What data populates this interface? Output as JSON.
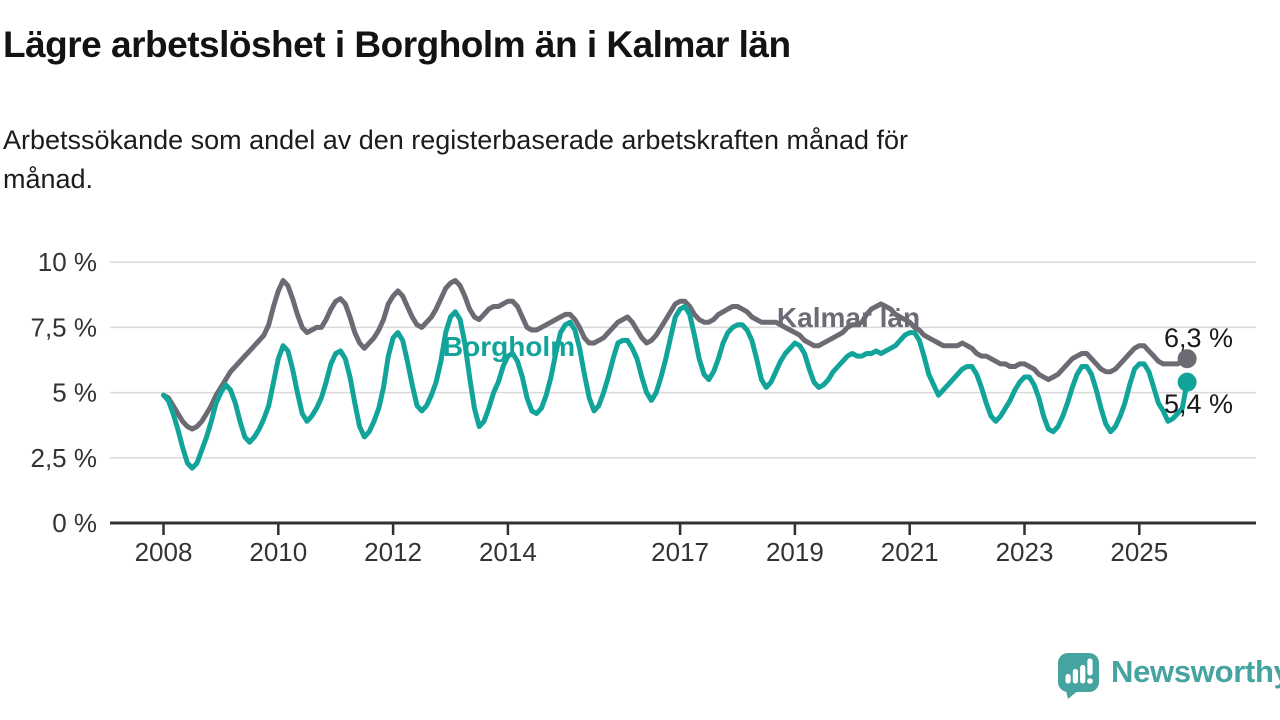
{
  "header": {
    "title": "Lägre arbetslöshet i Borgholm än i Kalmar län",
    "subtitle_line1": "Arbetssökande som andel av den registerbaserade arbetskraften månad för",
    "subtitle_line2": "månad."
  },
  "chart_data": {
    "type": "line",
    "title": "Lägre arbetslöshet i Borgholm än i Kalmar län",
    "subtitle": "Arbetssökande som andel av den registerbaserade arbetskraften månad för månad.",
    "x_unit": "month",
    "x_start": "2008-01",
    "x_end": "2025-11",
    "ylim": [
      0,
      10
    ],
    "grid": true,
    "ytick_labels": [
      "0 %",
      "2,5 %",
      "5 %",
      "7,5 %",
      "10 %"
    ],
    "ytick_values": [
      0,
      2.5,
      5,
      7.5,
      10
    ],
    "xtick_labels": [
      "2008",
      "2010",
      "2012",
      "2014",
      "2017",
      "2019",
      "2021",
      "2023",
      "2025"
    ],
    "xtick_years": [
      2008,
      2010,
      2012,
      2014,
      2017,
      2019,
      2021,
      2023,
      2025
    ],
    "series": [
      {
        "name": "Kalmar län",
        "slug": "kalmar-lan",
        "color": "#6e6a73",
        "end_label": "6,3 %",
        "end_value": 6.3,
        "values": [
          4.9,
          4.8,
          4.5,
          4.2,
          3.9,
          3.7,
          3.6,
          3.7,
          3.9,
          4.2,
          4.5,
          4.9,
          5.2,
          5.5,
          5.8,
          6.0,
          6.2,
          6.4,
          6.6,
          6.8,
          7.0,
          7.2,
          7.6,
          8.3,
          8.9,
          9.3,
          9.1,
          8.6,
          8.0,
          7.5,
          7.3,
          7.4,
          7.5,
          7.5,
          7.8,
          8.2,
          8.5,
          8.6,
          8.4,
          7.9,
          7.3,
          6.9,
          6.7,
          6.9,
          7.1,
          7.4,
          7.8,
          8.4,
          8.7,
          8.9,
          8.7,
          8.3,
          7.9,
          7.6,
          7.5,
          7.7,
          7.9,
          8.2,
          8.6,
          9.0,
          9.2,
          9.3,
          9.1,
          8.7,
          8.2,
          7.9,
          7.8,
          8.0,
          8.2,
          8.3,
          8.3,
          8.4,
          8.5,
          8.5,
          8.3,
          7.9,
          7.5,
          7.4,
          7.4,
          7.5,
          7.6,
          7.7,
          7.8,
          7.9,
          8.0,
          8.0,
          7.8,
          7.5,
          7.1,
          6.9,
          6.9,
          7.0,
          7.1,
          7.3,
          7.5,
          7.7,
          7.8,
          7.9,
          7.7,
          7.4,
          7.1,
          6.9,
          7.0,
          7.2,
          7.5,
          7.8,
          8.1,
          8.4,
          8.5,
          8.5,
          8.3,
          8.0,
          7.8,
          7.7,
          7.7,
          7.8,
          8.0,
          8.1,
          8.2,
          8.3,
          8.3,
          8.2,
          8.1,
          7.9,
          7.8,
          7.7,
          7.7,
          7.7,
          7.7,
          7.6,
          7.5,
          7.4,
          7.3,
          7.2,
          7.0,
          6.9,
          6.8,
          6.8,
          6.9,
          7.0,
          7.1,
          7.2,
          7.3,
          7.5,
          7.6,
          7.6,
          7.7,
          8.0,
          8.2,
          8.3,
          8.4,
          8.3,
          8.2,
          8.0,
          7.9,
          7.8,
          7.7,
          7.5,
          7.4,
          7.2,
          7.1,
          7.0,
          6.9,
          6.8,
          6.8,
          6.8,
          6.8,
          6.9,
          6.8,
          6.7,
          6.5,
          6.4,
          6.4,
          6.3,
          6.2,
          6.1,
          6.1,
          6.0,
          6.0,
          6.1,
          6.1,
          6.0,
          5.9,
          5.7,
          5.6,
          5.5,
          5.6,
          5.7,
          5.9,
          6.1,
          6.3,
          6.4,
          6.5,
          6.5,
          6.3,
          6.1,
          5.9,
          5.8,
          5.8,
          5.9,
          6.1,
          6.3,
          6.5,
          6.7,
          6.8,
          6.8,
          6.6,
          6.4,
          6.2,
          6.1,
          6.1,
          6.1,
          6.1,
          6.2,
          6.3
        ]
      },
      {
        "name": "Borgholm",
        "slug": "borgholm",
        "color": "#12a49a",
        "end_label": "5,4 %",
        "end_value": 5.4,
        "values": [
          4.9,
          4.7,
          4.2,
          3.6,
          2.9,
          2.3,
          2.1,
          2.3,
          2.8,
          3.3,
          3.9,
          4.6,
          5.0,
          5.3,
          5.1,
          4.6,
          3.9,
          3.3,
          3.1,
          3.3,
          3.6,
          4.0,
          4.5,
          5.4,
          6.3,
          6.8,
          6.6,
          5.9,
          5.0,
          4.2,
          3.9,
          4.1,
          4.4,
          4.8,
          5.4,
          6.1,
          6.5,
          6.6,
          6.3,
          5.6,
          4.6,
          3.7,
          3.3,
          3.5,
          3.9,
          4.4,
          5.2,
          6.4,
          7.1,
          7.3,
          7.0,
          6.2,
          5.3,
          4.5,
          4.3,
          4.5,
          4.9,
          5.4,
          6.2,
          7.3,
          7.9,
          8.1,
          7.8,
          6.9,
          5.6,
          4.4,
          3.7,
          3.9,
          4.4,
          5.0,
          5.4,
          6.0,
          6.4,
          6.5,
          6.2,
          5.6,
          4.8,
          4.3,
          4.2,
          4.4,
          4.9,
          5.6,
          6.5,
          7.3,
          7.6,
          7.7,
          7.4,
          6.7,
          5.7,
          4.8,
          4.3,
          4.5,
          5.0,
          5.6,
          6.3,
          6.9,
          7.0,
          7.0,
          6.7,
          6.3,
          5.6,
          5.0,
          4.7,
          5.0,
          5.6,
          6.3,
          7.1,
          7.9,
          8.2,
          8.3,
          8.0,
          7.2,
          6.3,
          5.7,
          5.5,
          5.8,
          6.3,
          6.9,
          7.3,
          7.5,
          7.6,
          7.6,
          7.4,
          7.0,
          6.3,
          5.5,
          5.2,
          5.4,
          5.8,
          6.2,
          6.5,
          6.7,
          6.9,
          6.8,
          6.5,
          5.9,
          5.4,
          5.2,
          5.3,
          5.5,
          5.8,
          6.0,
          6.2,
          6.4,
          6.5,
          6.4,
          6.4,
          6.5,
          6.5,
          6.6,
          6.5,
          6.6,
          6.7,
          6.8,
          7.0,
          7.2,
          7.3,
          7.3,
          7.0,
          6.4,
          5.7,
          5.3,
          4.9,
          5.1,
          5.3,
          5.5,
          5.7,
          5.9,
          6.0,
          6.0,
          5.7,
          5.2,
          4.6,
          4.1,
          3.9,
          4.1,
          4.4,
          4.7,
          5.1,
          5.4,
          5.6,
          5.6,
          5.3,
          4.8,
          4.1,
          3.6,
          3.5,
          3.7,
          4.1,
          4.6,
          5.2,
          5.7,
          6.0,
          6.0,
          5.7,
          5.1,
          4.4,
          3.8,
          3.5,
          3.7,
          4.1,
          4.6,
          5.3,
          5.9,
          6.1,
          6.1,
          5.8,
          5.2,
          4.6,
          4.3,
          3.9,
          4.0,
          4.2,
          4.4,
          5.4
        ]
      }
    ],
    "colors": {
      "grid": "#dadada",
      "axis": "#303030",
      "tick_text": "#333333"
    }
  },
  "branding": {
    "logo_text": "Newsworthy",
    "logo_color": "#45a3a0",
    "logo_icon": "speech-bubble-bar-chart-icon"
  }
}
